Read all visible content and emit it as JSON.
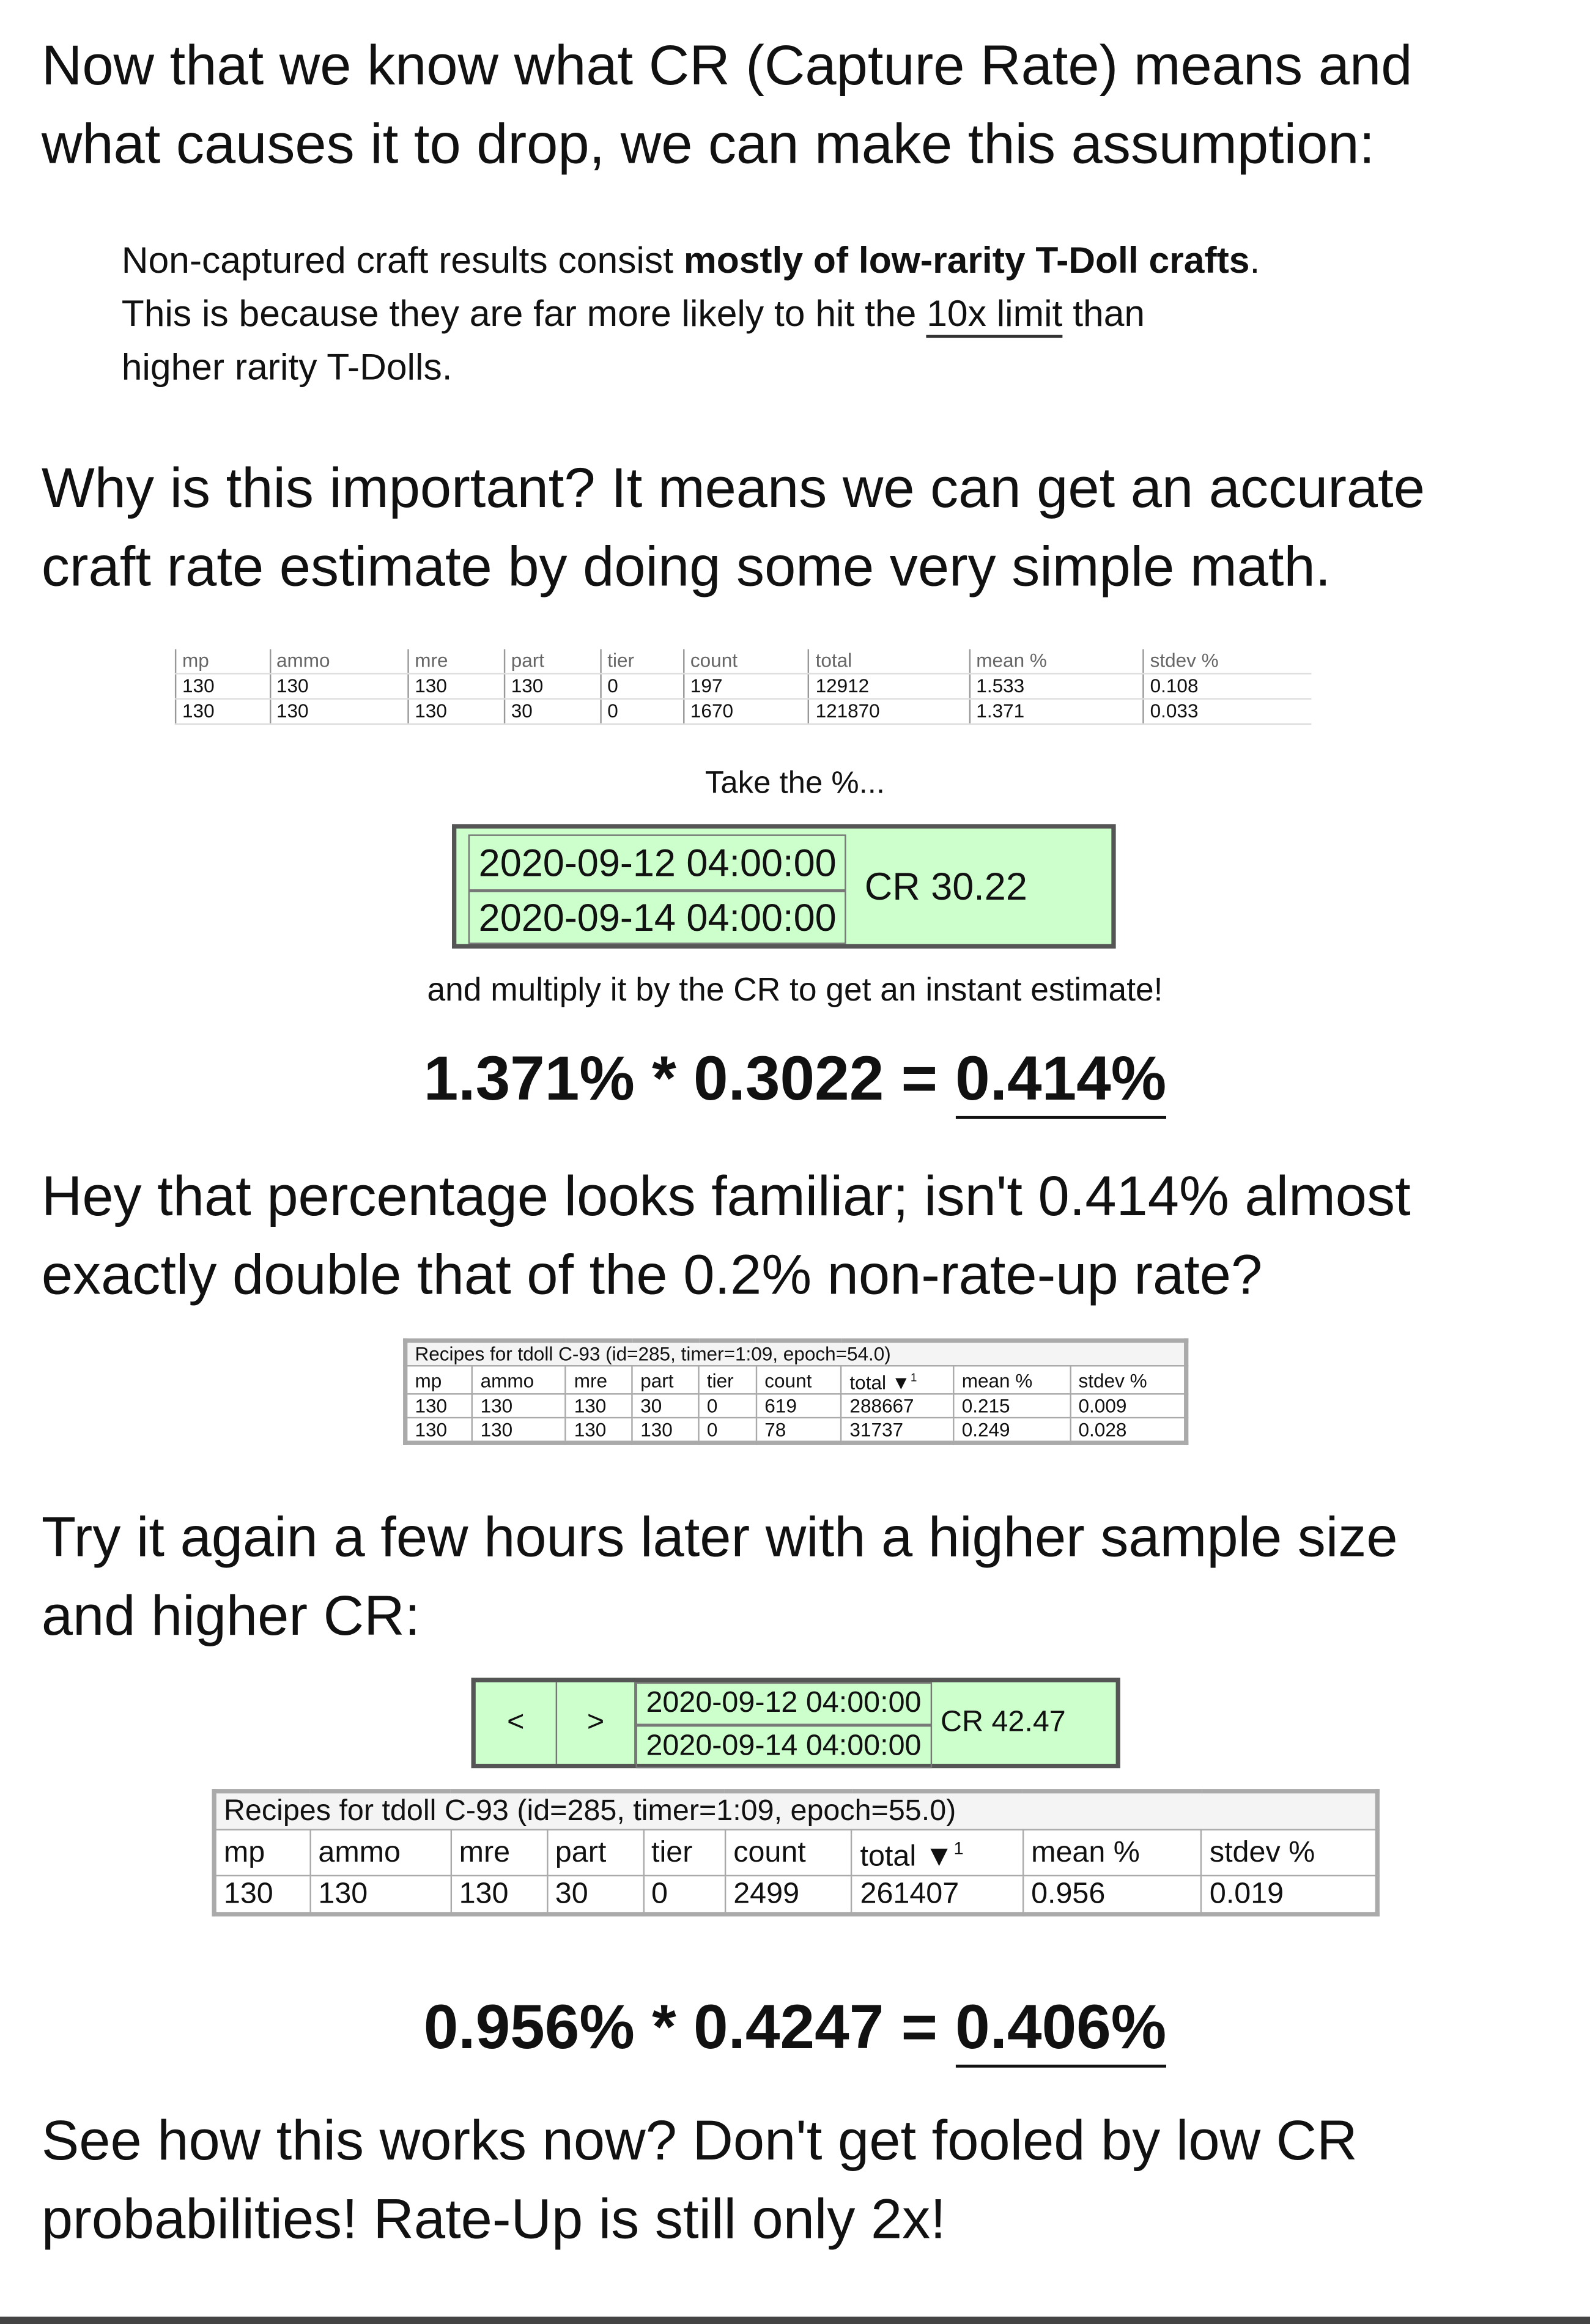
{
  "heading1": {
    "lines": [
      "Now that we know what CR (Capture Rate) means and",
      "what causes it to drop, we can make this assumption:"
    ]
  },
  "note": {
    "lines": [
      [
        "Non-captured craft results consist ",
        "mostly of low-rarity T-Doll crafts",
        "."
      ],
      [
        "This is because they are far more likely to hit the ",
        "10x limit",
        " than"
      ],
      [
        "higher rarity T-Dolls."
      ]
    ]
  },
  "heading2": {
    "lines": [
      "Why is this important? It means we can get an accurate",
      "craft rate estimate by doing some very simple math."
    ]
  },
  "table1": {
    "header": [
      "mp",
      "ammo",
      "mre",
      "part",
      "tier",
      "count",
      "total",
      "mean %",
      "stdev %"
    ],
    "rows": [
      [
        "130",
        "130",
        "130",
        "130",
        "0",
        "197",
        "12912",
        "1.533",
        "0.108"
      ],
      [
        "130",
        "130",
        "130",
        "30",
        "0",
        "1670",
        "121870",
        "1.371",
        "0.033"
      ]
    ]
  },
  "caption1": "Take the %...",
  "cr_box1": {
    "dates": [
      "2020-09-12 04:00:00",
      "2020-09-14 04:00:00"
    ],
    "cr": "CR 30.22"
  },
  "caption2": "and multiply it by the CR to get an instant estimate!",
  "equation1": {
    "expression": "1.371% * 0.3022 =",
    "result": "0.414%"
  },
  "heading3": {
    "lines": [
      "Hey that percentage looks familiar; isn't 0.414% almost",
      "exactly double that of the 0.2% non-rate-up rate?"
    ]
  },
  "table2": {
    "caption": "Recipes for tdoll C-93 (id=285, timer=1:09, epoch=54.0)",
    "header": [
      "mp",
      "ammo",
      "mre",
      "part",
      "tier",
      "count",
      "total ▼",
      "mean %",
      "stdev %"
    ],
    "sort_marker": "1",
    "rows": [
      [
        "130",
        "130",
        "130",
        "30",
        "0",
        "619",
        "288667",
        "0.215",
        "0.009"
      ],
      [
        "130",
        "130",
        "130",
        "130",
        "0",
        "78",
        "31737",
        "0.249",
        "0.028"
      ]
    ]
  },
  "heading4": {
    "lines": [
      "Try it again a few hours later with a higher sample size",
      "and higher CR:"
    ]
  },
  "cr_box2": {
    "prev": "<",
    "next": ">",
    "dates": [
      "2020-09-12 04:00:00",
      "2020-09-14 04:00:00"
    ],
    "cr": "CR 42.47"
  },
  "table3": {
    "caption": "Recipes for tdoll C-93 (id=285, timer=1:09, epoch=55.0)",
    "header": [
      "mp",
      "ammo",
      "mre",
      "part",
      "tier",
      "count",
      "total ▼",
      "mean %",
      "stdev %"
    ],
    "sort_marker": "1",
    "rows": [
      [
        "130",
        "130",
        "130",
        "30",
        "0",
        "2499",
        "261407",
        "0.956",
        "0.019"
      ]
    ]
  },
  "equation2": {
    "expression": "0.956% * 0.4247 =",
    "result": "0.406%"
  },
  "closing": {
    "lines": [
      "See how this works now? Don't get fooled by low CR",
      "probabilities! Rate-Up is still only 2x!"
    ]
  }
}
